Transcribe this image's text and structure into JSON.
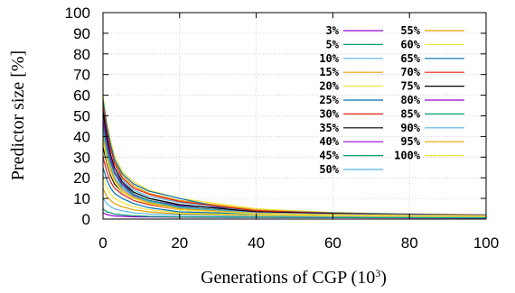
{
  "chart_data": {
    "type": "line",
    "title": "",
    "xlabel": "Generations of CGP (10",
    "xlabel_sup": "3",
    "xlabel_close": ")",
    "ylabel": "Predictor size [%]",
    "xlim": [
      0,
      100
    ],
    "ylim": [
      0,
      100
    ],
    "xticks": [
      "0",
      "20",
      "40",
      "60",
      "80",
      "100"
    ],
    "yticks": [
      "0",
      "10",
      "20",
      "30",
      "40",
      "50",
      "60",
      "70",
      "80",
      "90",
      "100"
    ],
    "grid": true,
    "legend_position": "top-right",
    "series": [
      {
        "name": "3%",
        "color": "#9400d3",
        "x": [
          0,
          1,
          2,
          3,
          5,
          8,
          12,
          20,
          40,
          60,
          80,
          100
        ],
        "y": [
          3,
          2.2,
          1.8,
          1.5,
          1.3,
          1.1,
          1,
          0.9,
          0.8,
          0.7,
          0.6,
          0.5
        ]
      },
      {
        "name": "5%",
        "color": "#009e73",
        "x": [
          0,
          1,
          2,
          3,
          5,
          8,
          12,
          20,
          40,
          60,
          80,
          100
        ],
        "y": [
          5,
          3.5,
          3,
          2.5,
          2,
          1.6,
          1.3,
          1.1,
          0.9,
          0.8,
          0.7,
          0.6
        ]
      },
      {
        "name": "10%",
        "color": "#56b4e9",
        "x": [
          0,
          1,
          2,
          3,
          5,
          8,
          12,
          20,
          40,
          60,
          80,
          100
        ],
        "y": [
          10,
          7.5,
          6,
          5,
          4,
          3,
          2.5,
          2,
          1.5,
          1.2,
          1.1,
          1
        ]
      },
      {
        "name": "15%",
        "color": "#e69f00",
        "x": [
          0,
          1,
          2,
          3,
          5,
          8,
          12,
          20,
          40,
          60,
          80,
          100
        ],
        "y": [
          15,
          11,
          9,
          7.5,
          6,
          4.5,
          3.5,
          2.5,
          1.8,
          1.5,
          1.3,
          1.2
        ]
      },
      {
        "name": "20%",
        "color": "#f0e442",
        "x": [
          0,
          1,
          2,
          3,
          5,
          8,
          12,
          20,
          40,
          60,
          80,
          100
        ],
        "y": [
          20,
          15,
          12,
          10,
          8,
          6,
          4.5,
          3,
          2,
          1.6,
          1.4,
          1.3
        ]
      },
      {
        "name": "25%",
        "color": "#0072b2",
        "x": [
          0,
          1,
          2,
          3,
          5,
          8,
          12,
          20,
          40,
          60,
          80,
          100
        ],
        "y": [
          25,
          19,
          15,
          12.5,
          10,
          7.5,
          5.5,
          3.5,
          2.5,
          2,
          1.6,
          1.5
        ]
      },
      {
        "name": "30%",
        "color": "#e51e10",
        "x": [
          0,
          1,
          2,
          3,
          5,
          8,
          12,
          20,
          40,
          60,
          80,
          100
        ],
        "y": [
          30,
          23,
          18,
          15,
          12,
          9,
          7,
          4.5,
          2.8,
          2.2,
          1.8,
          1.6
        ]
      },
      {
        "name": "35%",
        "color": "#000000",
        "x": [
          0,
          1,
          2,
          3,
          5,
          8,
          12,
          20,
          40,
          60,
          80,
          100
        ],
        "y": [
          35,
          27,
          21,
          17,
          13,
          10,
          8,
          5,
          3,
          2.3,
          1.9,
          1.7
        ]
      },
      {
        "name": "40%",
        "color": "#9400d3",
        "x": [
          0,
          1,
          2,
          3,
          5,
          8,
          12,
          20,
          30,
          40,
          45,
          60,
          80,
          100
        ],
        "y": [
          40,
          31,
          25,
          20,
          15,
          11.5,
          9,
          6.5,
          5.5,
          5,
          2.5,
          2,
          1.8,
          1.7
        ]
      },
      {
        "name": "45%",
        "color": "#009e73",
        "x": [
          0,
          1,
          2,
          3,
          5,
          8,
          12,
          20,
          40,
          60,
          80,
          100
        ],
        "y": [
          45,
          35,
          28,
          22,
          17,
          13,
          10,
          7,
          3.5,
          2.5,
          2,
          1.8
        ]
      },
      {
        "name": "50%",
        "color": "#56b4e9",
        "x": [
          0,
          1,
          2,
          3,
          5,
          8,
          12,
          20,
          40,
          60,
          80,
          100
        ],
        "y": [
          50,
          39,
          31,
          25,
          19,
          14,
          11,
          8,
          4,
          2.8,
          2.2,
          1.9
        ]
      },
      {
        "name": "55%",
        "color": "#e69f00",
        "x": [
          0,
          1,
          2,
          3,
          5,
          8,
          12,
          20,
          40,
          60,
          80,
          100
        ],
        "y": [
          55,
          43,
          34,
          28,
          21,
          16,
          12.5,
          9,
          4.5,
          3,
          2.3,
          2
        ]
      },
      {
        "name": "60%",
        "color": "#f0e442",
        "x": [
          0,
          1,
          2,
          3,
          5,
          8,
          12,
          20,
          40,
          60,
          80,
          100
        ],
        "y": [
          60,
          47,
          38,
          31,
          23,
          18,
          14,
          10,
          5,
          3.2,
          2.5,
          2.1
        ]
      },
      {
        "name": "65%",
        "color": "#0072b2",
        "x": [
          0,
          1,
          2,
          3,
          5,
          8,
          12,
          20,
          30,
          40,
          60,
          80,
          100
        ],
        "y": [
          58,
          45,
          36,
          29,
          22,
          17,
          13.5,
          10,
          6,
          4,
          3,
          2.4,
          2
        ]
      },
      {
        "name": "70%",
        "color": "#e51e10",
        "x": [
          0,
          1,
          2,
          3,
          5,
          8,
          12,
          20,
          40,
          60,
          80,
          100
        ],
        "y": [
          55,
          42,
          34,
          27,
          20,
          15,
          12,
          8.5,
          4,
          2.8,
          2.2,
          1.9
        ]
      },
      {
        "name": "75%",
        "color": "#000000",
        "x": [
          0,
          1,
          2,
          3,
          5,
          8,
          12,
          20,
          40,
          60,
          80,
          100
        ],
        "y": [
          52,
          40,
          31,
          25,
          18,
          13,
          10,
          7,
          3.5,
          2.6,
          2.1,
          1.8
        ]
      },
      {
        "name": "80%",
        "color": "#9400d3",
        "x": [
          0,
          1,
          2,
          3,
          5,
          8,
          12,
          20,
          40,
          60,
          80,
          100
        ],
        "y": [
          48,
          37,
          29,
          23,
          17,
          12,
          9,
          6,
          3.2,
          2.4,
          2,
          1.8
        ]
      },
      {
        "name": "85%",
        "color": "#009e73",
        "x": [
          0,
          1,
          2,
          3,
          5,
          8,
          12,
          20,
          40,
          60,
          80,
          100
        ],
        "y": [
          45,
          34,
          27,
          22,
          16,
          12,
          9,
          6,
          3,
          2.3,
          1.9,
          1.7
        ]
      },
      {
        "name": "90%",
        "color": "#56b4e9",
        "x": [
          0,
          1,
          2,
          3,
          5,
          8,
          12,
          20,
          40,
          60,
          80,
          100
        ],
        "y": [
          42,
          32,
          25,
          20,
          15,
          11,
          8.5,
          5.5,
          3,
          2.2,
          1.9,
          1.7
        ]
      },
      {
        "name": "95%",
        "color": "#e69f00",
        "x": [
          0,
          1,
          2,
          3,
          5,
          8,
          12,
          20,
          40,
          60,
          80,
          100
        ],
        "y": [
          40,
          30,
          24,
          19,
          14,
          10.5,
          8,
          5,
          2.8,
          2.1,
          1.8,
          1.6
        ]
      },
      {
        "name": "100%",
        "color": "#f0e442",
        "x": [
          0,
          1,
          2,
          3,
          5,
          8,
          12,
          20,
          40,
          60,
          80,
          100
        ],
        "y": [
          38,
          28,
          22,
          18,
          13,
          10,
          7.5,
          4.5,
          2.6,
          2,
          1.7,
          1.5
        ]
      }
    ]
  }
}
